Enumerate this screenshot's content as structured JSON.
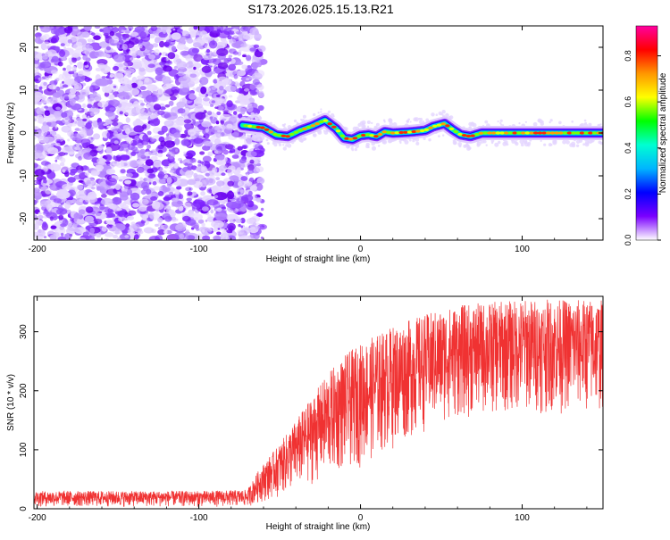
{
  "title": "S173.2026.025.15.13.R21",
  "chart_data": [
    {
      "type": "heatmap",
      "name": "spectrogram",
      "xlabel": "Height of straight line (km)",
      "ylabel": "Frequency (Hz)",
      "xlim": [
        -202,
        150
      ],
      "ylim": [
        -25,
        25
      ],
      "xticks": [
        -200,
        -100,
        0,
        100
      ],
      "yticks": [
        -20,
        -10,
        0,
        10,
        20
      ],
      "noise_region_x": [
        -202,
        -64
      ],
      "signal_start_x": -73,
      "signal_track": [
        [
          -73,
          1.8
        ],
        [
          -60,
          1.2
        ],
        [
          -52,
          -0.5
        ],
        [
          -45,
          -0.8
        ],
        [
          -38,
          0.5
        ],
        [
          -30,
          1.6
        ],
        [
          -22,
          3.0
        ],
        [
          -15,
          1.0
        ],
        [
          -10,
          -1.2
        ],
        [
          -5,
          -1.5
        ],
        [
          0,
          -0.6
        ],
        [
          5,
          -0.4
        ],
        [
          10,
          -0.8
        ],
        [
          15,
          0.3
        ],
        [
          20,
          0.0
        ],
        [
          30,
          0.2
        ],
        [
          40,
          0.6
        ],
        [
          45,
          1.5
        ],
        [
          52,
          2.2
        ],
        [
          57,
          0.8
        ],
        [
          62,
          -0.4
        ],
        [
          68,
          -0.8
        ],
        [
          75,
          0.0
        ],
        [
          90,
          0.0
        ],
        [
          110,
          0.0
        ],
        [
          130,
          0.0
        ],
        [
          150,
          0.0
        ]
      ],
      "colorbar": {
        "label": "Normalized spectral amplitude",
        "range": [
          0,
          0.93
        ],
        "ticks": [
          0.0,
          0.2,
          0.4,
          0.6,
          0.8
        ],
        "tick_labels": [
          "0.0",
          "0.2",
          "0.4",
          "0.6",
          "0.8"
        ],
        "colors": [
          "#ffffff",
          "#7a00ff",
          "#0000ff",
          "#00b4ff",
          "#00ffd2",
          "#00ff00",
          "#ffff00",
          "#ff9600",
          "#ff0000",
          "#ff00a0"
        ]
      }
    },
    {
      "type": "line",
      "name": "snr",
      "xlabel": "Height of straight line (km)",
      "ylabel": "SNR (10 * v/v)",
      "xlim": [
        -202,
        150
      ],
      "ylim": [
        0,
        360
      ],
      "xticks": [
        -200,
        -100,
        0,
        100
      ],
      "yticks": [
        0,
        100,
        200,
        300
      ],
      "color": "#f03232",
      "envelope": [
        [
          -202,
          3,
          30
        ],
        [
          -100,
          3,
          30
        ],
        [
          -70,
          3,
          32
        ],
        [
          -62,
          10,
          70
        ],
        [
          -50,
          20,
          110
        ],
        [
          -40,
          30,
          150
        ],
        [
          -30,
          40,
          190
        ],
        [
          -20,
          50,
          230
        ],
        [
          -10,
          60,
          260
        ],
        [
          0,
          70,
          280
        ],
        [
          20,
          100,
          310
        ],
        [
          40,
          130,
          330
        ],
        [
          60,
          150,
          345
        ],
        [
          100,
          160,
          355
        ],
        [
          150,
          160,
          355
        ]
      ]
    }
  ]
}
